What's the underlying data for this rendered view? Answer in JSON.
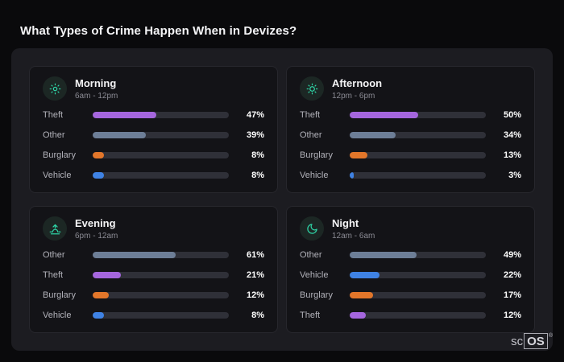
{
  "page": {
    "title": "What Types of Crime Happen When in Devizes?"
  },
  "brand": {
    "prefix": "sc",
    "os": "OS",
    "reg": "®"
  },
  "colors": {
    "Theft": "#a566de",
    "Other": "#6d7e97",
    "Burglary": "#e2762a",
    "Vehicle": "#3f82e4",
    "icon_accent": "#2ed3a5"
  },
  "chart_data": [
    {
      "type": "bar",
      "title": "Morning",
      "subtitle": "6am - 12pm",
      "icon": "sun-rays-icon",
      "categories": [
        "Theft",
        "Other",
        "Burglary",
        "Vehicle"
      ],
      "values": [
        47,
        39,
        8,
        8
      ],
      "value_suffix": "%",
      "xlim": [
        0,
        100
      ],
      "orientation": "horizontal"
    },
    {
      "type": "bar",
      "title": "Afternoon",
      "subtitle": "12pm - 6pm",
      "icon": "sun-icon",
      "categories": [
        "Theft",
        "Other",
        "Burglary",
        "Vehicle"
      ],
      "values": [
        50,
        34,
        13,
        3
      ],
      "value_suffix": "%",
      "xlim": [
        0,
        100
      ],
      "orientation": "horizontal"
    },
    {
      "type": "bar",
      "title": "Evening",
      "subtitle": "6pm - 12am",
      "icon": "sunrise-icon",
      "categories": [
        "Other",
        "Theft",
        "Burglary",
        "Vehicle"
      ],
      "values": [
        61,
        21,
        12,
        8
      ],
      "value_suffix": "%",
      "xlim": [
        0,
        100
      ],
      "orientation": "horizontal"
    },
    {
      "type": "bar",
      "title": "Night",
      "subtitle": "12am - 6am",
      "icon": "moon-icon",
      "categories": [
        "Other",
        "Vehicle",
        "Burglary",
        "Theft"
      ],
      "values": [
        49,
        22,
        17,
        12
      ],
      "value_suffix": "%",
      "xlim": [
        0,
        100
      ],
      "orientation": "horizontal"
    }
  ]
}
